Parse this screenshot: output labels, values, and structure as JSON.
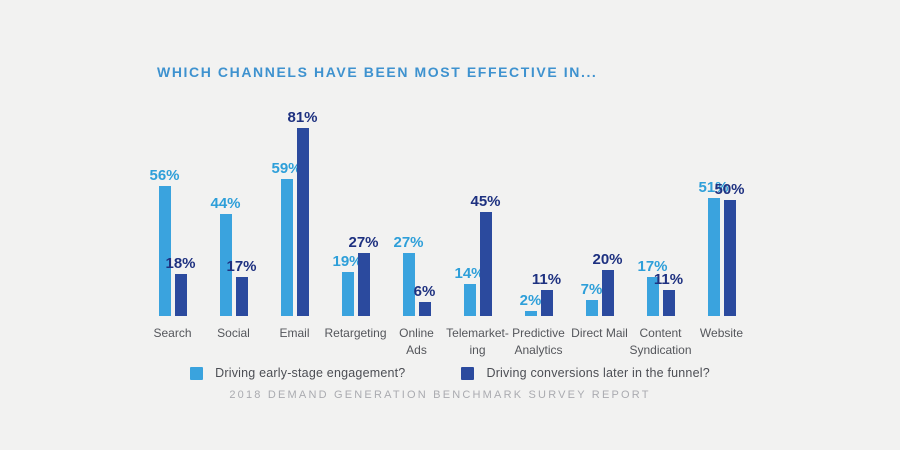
{
  "background": "#f2f2f1",
  "title": {
    "text": "WHICH CHANNELS HAVE BEEN MOST EFFECTIVE IN...",
    "color": "#3e92cf"
  },
  "chart_data": {
    "type": "bar",
    "title": "WHICH CHANNELS HAVE BEEN MOST EFFECTIVE IN...",
    "categories": [
      "Search",
      "Social",
      "Email",
      "Retargeting",
      "Online\nAds",
      "Telemarket-\ning",
      "Predictive\nAnalytics",
      "Direct Mail",
      "Content\nSyndication",
      "Website"
    ],
    "series": [
      {
        "name": "Driving early-stage engagement?",
        "color": "#3aa3de",
        "label_color": "#2e9fd9",
        "values": [
          56,
          44,
          59,
          19,
          27,
          14,
          2,
          7,
          17,
          51
        ]
      },
      {
        "name": "Driving conversions later in the funnel?",
        "color": "#2b4a9e",
        "label_color": "#1e3180",
        "values": [
          18,
          17,
          81,
          27,
          6,
          45,
          11,
          20,
          11,
          50
        ]
      }
    ],
    "value_suffix": "%",
    "ylim": [
      0,
      85
    ],
    "grid": false,
    "axis_lines": false,
    "legend_position": "bottom",
    "data_labels": true
  },
  "footer": {
    "text": "2018 DEMAND GENERATION BENCHMARK SURVEY REPORT"
  }
}
